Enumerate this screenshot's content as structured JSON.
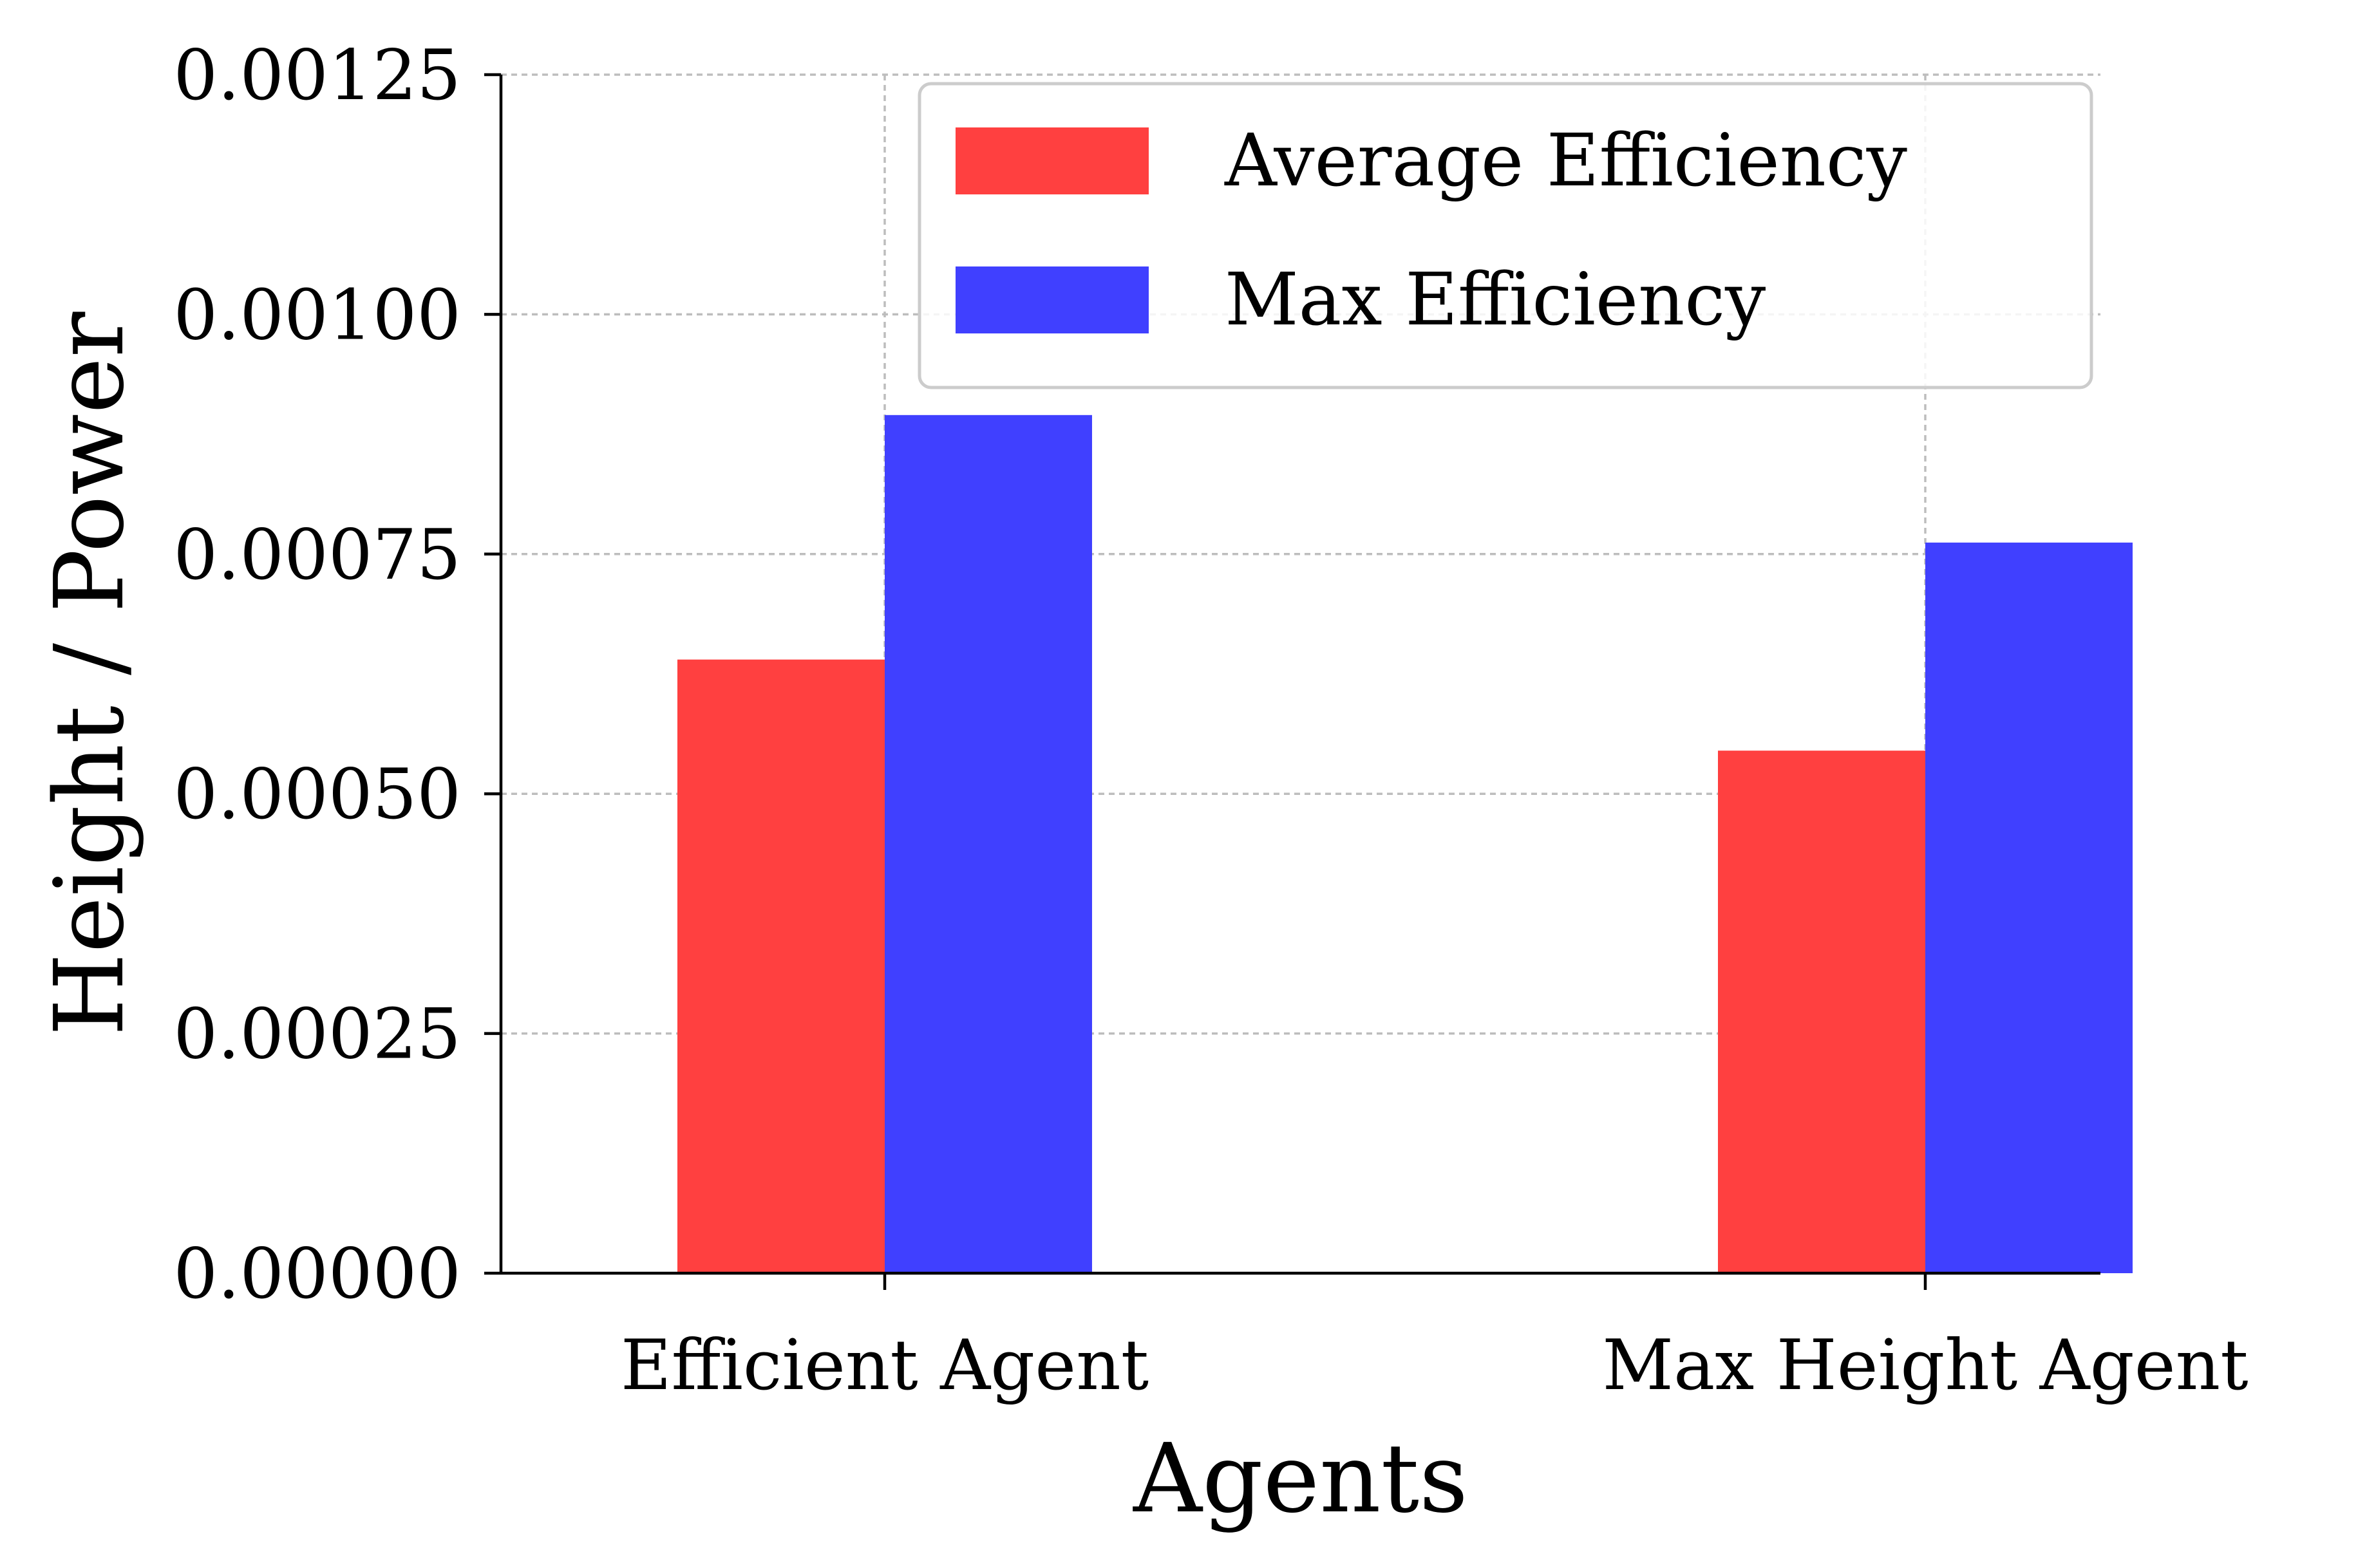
{
  "chart_data": {
    "type": "bar",
    "title": "",
    "xlabel": "Agents",
    "ylabel": "Height / Power",
    "categories": [
      "Efficient Agent",
      "Max Height Agent"
    ],
    "series": [
      {
        "name": "Average Efficiency",
        "color": "#ff4040",
        "values": [
          0.00064,
          0.000545
        ]
      },
      {
        "name": "Max Efficiency",
        "color": "#4040ff",
        "values": [
          0.000895,
          0.000762
        ]
      }
    ],
    "ylim": [
      0,
      0.00125
    ],
    "yticks": [
      "0.00000",
      "0.00025",
      "0.00050",
      "0.00075",
      "0.00100",
      "0.00125"
    ],
    "grid": true,
    "legend_position": "top-right"
  }
}
